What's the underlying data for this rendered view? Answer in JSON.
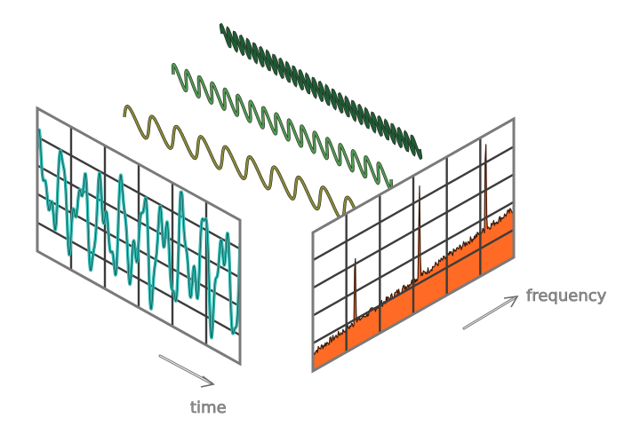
{
  "labels": {
    "time": "time",
    "frequency": "frequency"
  },
  "colors": {
    "time_signal": "#2fb8b0",
    "spectrum_fill": "#ff6a24",
    "spectrum_edge": "#3a1a0a",
    "grid_line": "#3c3c3c",
    "panel_border": "#7a7a7a",
    "wave_low": "#8a8a3c",
    "wave_mid": "#4f9a55",
    "wave_high": "#1e5c38",
    "label": "#8a8a8a"
  },
  "icons": [
    "time-arrow-icon",
    "frequency-arrow-icon"
  ],
  "waves": [
    {
      "name": "low-frequency",
      "cycles": 10
    },
    {
      "name": "mid-frequency",
      "cycles": 17
    },
    {
      "name": "high-frequency",
      "cycles": 30
    }
  ]
}
